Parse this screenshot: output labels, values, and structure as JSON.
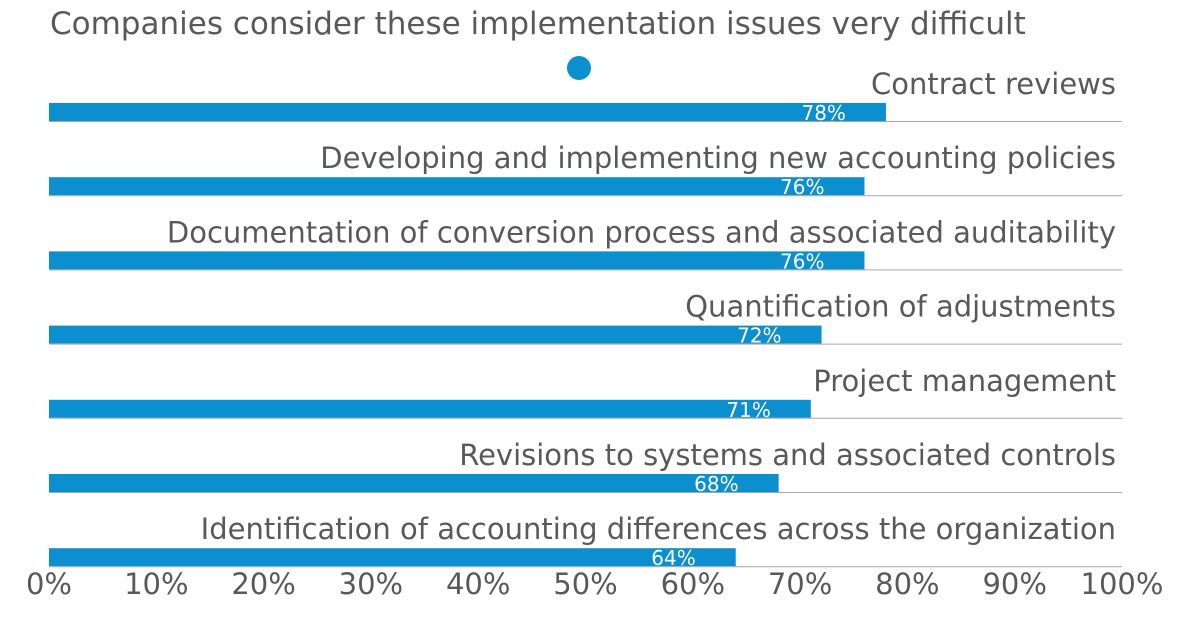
{
  "subtitle": "Companies consider these implementation issues very difficult",
  "colors": {
    "bar": "#0b8fcf",
    "text": "#595959",
    "baseline": "#a6a6a6",
    "value_label": "#ffffff",
    "marker": "#0b8fcf"
  },
  "chart_data": {
    "type": "bar",
    "orientation": "horizontal",
    "title": "",
    "xlabel": "",
    "ylabel": "",
    "xlim": [
      0,
      100
    ],
    "grid": false,
    "legend": "none",
    "categories": [
      "Contract reviews",
      "Developing and implementing new accounting policies",
      "Documentation of conversion process and associated auditability",
      "Quantification of adjustments",
      "Project management",
      "Revisions to systems and associated controls",
      "Identification of accounting differences across the organization"
    ],
    "values": [
      78,
      76,
      76,
      72,
      71,
      68,
      64
    ],
    "value_labels": [
      "78%",
      "76%",
      "76%",
      "72%",
      "71%",
      "68%",
      "64%"
    ],
    "x_ticks": [
      "0%",
      "10%",
      "20%",
      "30%",
      "40%",
      "50%",
      "60%",
      "70%",
      "80%",
      "90%",
      "100%"
    ]
  }
}
